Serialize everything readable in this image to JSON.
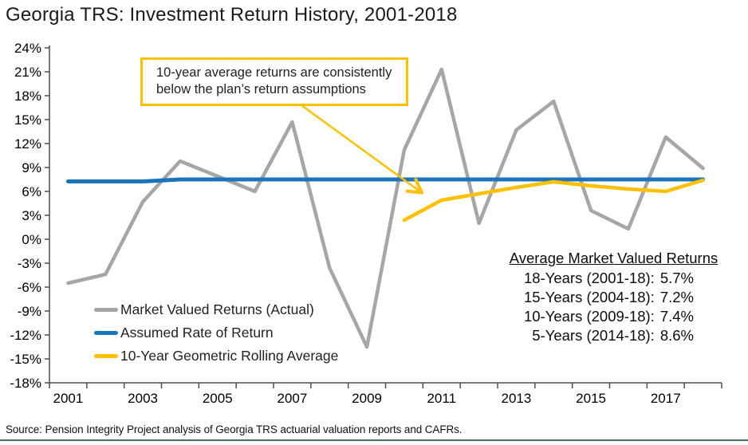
{
  "page": {
    "title": "Georgia TRS: Investment Return History, 2001-2018",
    "source": "Source: Pension Integrity Project analysis of Georgia TRS actuarial valuation reports and CAFRs."
  },
  "annotation": {
    "text": "10-year average returns are consistently below the plan’s return assumptions"
  },
  "stats": {
    "title": "Average Market Valued Returns",
    "rows": [
      {
        "label": "18-Years (2001-18):",
        "value": "5.7%"
      },
      {
        "label": "15-Years (2004-18):",
        "value": "7.2%"
      },
      {
        "label": "10-Years (2009-18):",
        "value": "7.4%"
      },
      {
        "label": "5-Years (2014-18):",
        "value": "8.6%"
      }
    ]
  },
  "colors": {
    "market_gray": "#A6A6A6",
    "assumed_blue": "#1B75BC",
    "rolling_gold": "#FFC000",
    "axis": "#4d4d4d",
    "tick_label": "#000000",
    "footer_rule": "#4A6B5C"
  },
  "chart_data": {
    "type": "line",
    "x": [
      2001,
      2002,
      2003,
      2004,
      2005,
      2006,
      2007,
      2008,
      2009,
      2010,
      2011,
      2012,
      2013,
      2014,
      2015,
      2016,
      2017,
      2018
    ],
    "x_tick_labels": [
      2001,
      2003,
      2005,
      2007,
      2009,
      2011,
      2013,
      2015,
      2017
    ],
    "ylim": [
      -18,
      24
    ],
    "ytick_step": 3,
    "ytick_suffix": "%",
    "grid": false,
    "legend_position": "inside-bottom-left",
    "series": [
      {
        "name": "Market Valued Returns (Actual)",
        "color": "market_gray",
        "width": 4.5,
        "values": [
          -5.5,
          -4.4,
          4.7,
          9.8,
          7.9,
          6.0,
          14.7,
          -3.6,
          -13.5,
          11.2,
          21.3,
          2.0,
          13.7,
          17.3,
          3.6,
          1.3,
          12.8,
          8.9
        ]
      },
      {
        "name": "Assumed Rate of Return",
        "color": "assumed_blue",
        "width": 5,
        "values": [
          7.25,
          7.25,
          7.25,
          7.5,
          7.5,
          7.5,
          7.5,
          7.5,
          7.5,
          7.5,
          7.5,
          7.5,
          7.5,
          7.5,
          7.5,
          7.5,
          7.5,
          7.5
        ]
      },
      {
        "name": "10-Year Geometric Rolling Average",
        "color": "rolling_gold",
        "width": 4.5,
        "values": [
          null,
          null,
          null,
          null,
          null,
          null,
          null,
          null,
          null,
          2.4,
          4.9,
          5.7,
          6.5,
          7.2,
          6.7,
          6.3,
          6.0,
          7.4
        ]
      }
    ]
  }
}
